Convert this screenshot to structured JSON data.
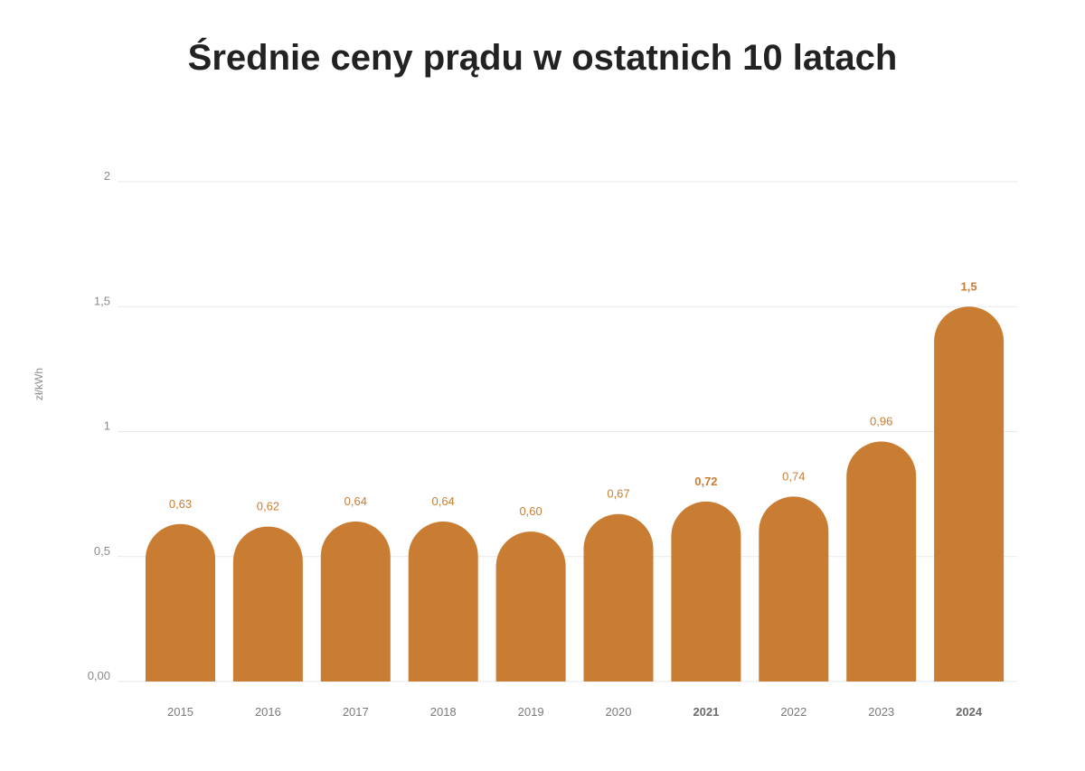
{
  "chart_data": {
    "type": "bar",
    "title": "Średnie ceny prądu w ostatnich 10 latach",
    "ylabel": "zł/kWh",
    "xlabel": "",
    "ylim": [
      0,
      2
    ],
    "y_ticks": [
      {
        "value": 0,
        "label": "0,00"
      },
      {
        "value": 0.5,
        "label": "0,5"
      },
      {
        "value": 1,
        "label": "1"
      },
      {
        "value": 1.5,
        "label": "1,5"
      },
      {
        "value": 2,
        "label": "2"
      }
    ],
    "grid": true,
    "bar_color": "#C97D33",
    "categories": [
      "2015",
      "2016",
      "2017",
      "2018",
      "2019",
      "2020",
      "2021",
      "2022",
      "2023",
      "2024"
    ],
    "bold_categories": [
      "2021",
      "2024"
    ],
    "values": [
      0.63,
      0.62,
      0.64,
      0.64,
      0.6,
      0.67,
      0.72,
      0.74,
      0.96,
      1.5
    ],
    "value_labels": [
      "0,63",
      "0,62",
      "0,64",
      "0,64",
      "0,60",
      "0,67",
      "0,72",
      "0,74",
      "0,96",
      "1,5"
    ]
  }
}
